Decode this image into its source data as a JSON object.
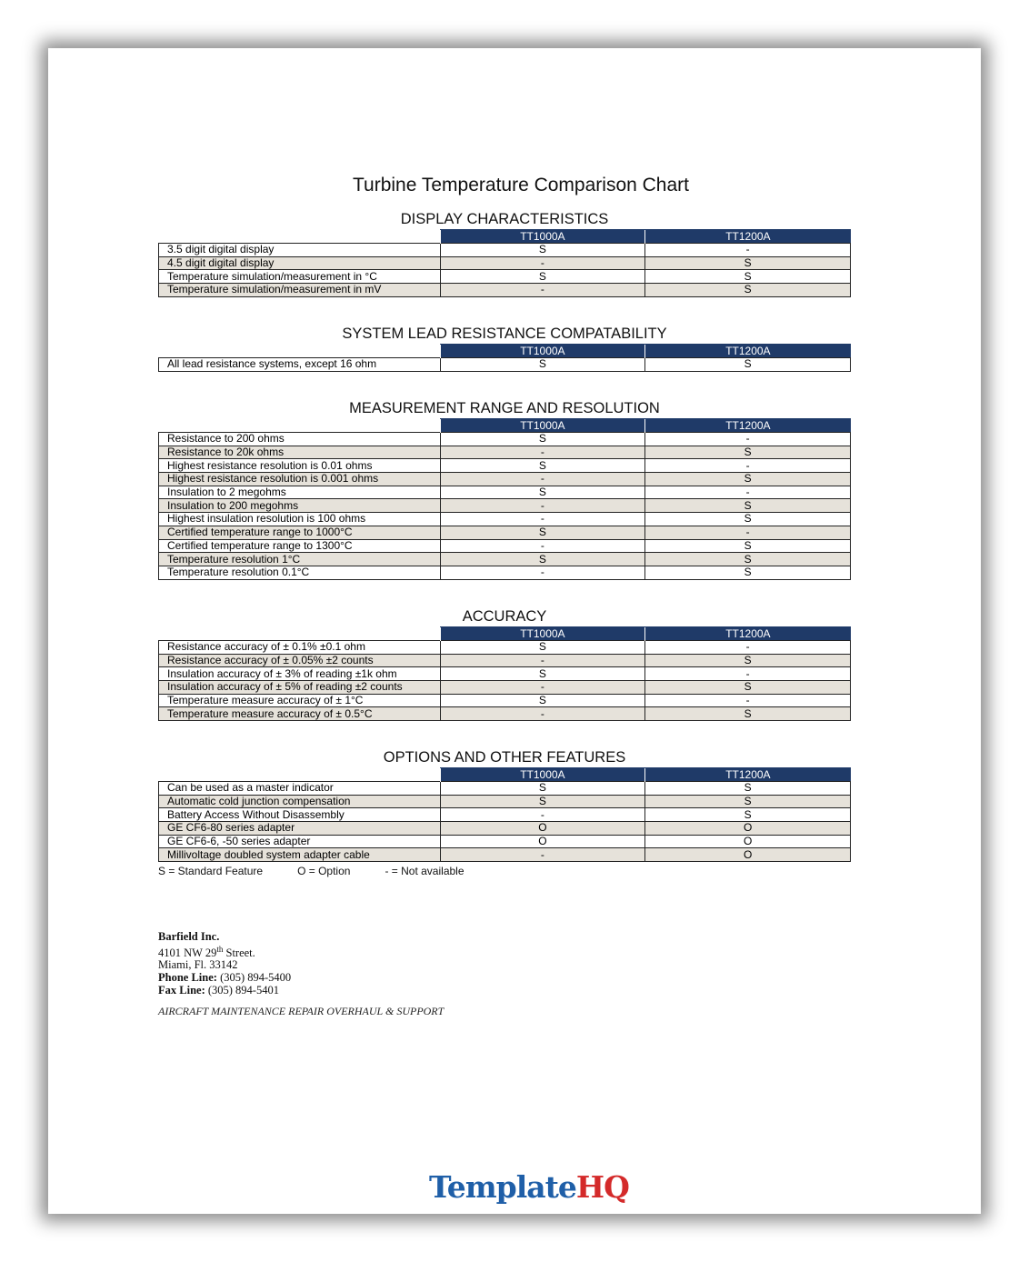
{
  "title": "Turbine Temperature Comparison Chart",
  "columns": [
    "TT1000A",
    "TT1200A"
  ],
  "colors": {
    "header_bg": "#1f3a68",
    "alt_row": "#e6e2da",
    "logo_blue": "#1f5fa8",
    "logo_red": "#d42a2a"
  },
  "sections": [
    {
      "heading": "DISPLAY CHARACTERISTICS",
      "rows": [
        [
          "3.5 digit digital display",
          "S",
          "-"
        ],
        [
          "4.5 digit digital display",
          "-",
          "S"
        ],
        [
          "Temperature simulation/measurement in °C",
          "S",
          "S"
        ],
        [
          "Temperature simulation/measurement in mV",
          "-",
          "S"
        ]
      ]
    },
    {
      "heading": "SYSTEM LEAD RESISTANCE COMPATABILITY",
      "rows": [
        [
          "All lead resistance systems, except 16 ohm",
          "S",
          "S"
        ]
      ]
    },
    {
      "heading": "MEASUREMENT RANGE AND RESOLUTION",
      "rows": [
        [
          "Resistance to 200 ohms",
          "S",
          "-"
        ],
        [
          "Resistance to 20k ohms",
          "-",
          "S"
        ],
        [
          "Highest resistance resolution is 0.01 ohms",
          "S",
          "-"
        ],
        [
          "Highest resistance resolution is 0.001 ohms",
          "-",
          "S"
        ],
        [
          "Insulation to 2 megohms",
          "S",
          "-"
        ],
        [
          "Insulation to 200 megohms",
          "-",
          "S"
        ],
        [
          "Highest insulation resolution is 100 ohms",
          "-",
          "S"
        ],
        [
          "Certified temperature range to 1000°C",
          "S",
          "-"
        ],
        [
          "Certified temperature range to 1300°C",
          "-",
          "S"
        ],
        [
          "Temperature resolution 1°C",
          "S",
          "S"
        ],
        [
          "Temperature resolution 0.1°C",
          "-",
          "S"
        ]
      ]
    },
    {
      "heading": "ACCURACY",
      "rows": [
        [
          "Resistance accuracy of ± 0.1% ±0.1 ohm",
          "S",
          "-"
        ],
        [
          "Resistance accuracy of ± 0.05% ±2 counts",
          "-",
          "S"
        ],
        [
          "Insulation accuracy of ± 3% of reading ±1k ohm",
          "S",
          "-"
        ],
        [
          "Insulation accuracy of ± 5% of reading ±2 counts",
          "-",
          "S"
        ],
        [
          "Temperature measure accuracy of ± 1°C",
          "S",
          "-"
        ],
        [
          "Temperature measure accuracy of ± 0.5°C",
          "-",
          "S"
        ]
      ]
    },
    {
      "heading": "OPTIONS AND OTHER FEATURES",
      "rows": [
        [
          "Can be used as a master indicator",
          "S",
          "S"
        ],
        [
          "Automatic cold junction compensation",
          "S",
          "S"
        ],
        [
          "Battery Access Without Disassembly",
          "-",
          "S"
        ],
        [
          "GE CF6-80 series adapter",
          "O",
          "O"
        ],
        [
          "GE CF6-6, -50 series adapter",
          "O",
          "O"
        ],
        [
          "Millivoltage doubled system adapter cable",
          "-",
          "O"
        ]
      ]
    }
  ],
  "legend": [
    "S = Standard Feature",
    "O = Option",
    "- = Not available"
  ],
  "footer": {
    "company": "Barfield Inc.",
    "street_pre": "4101 NW 29",
    "street_sup": "th",
    "street_post": " Street.",
    "city": "Miami, Fl. 33142",
    "phone_label": "Phone Line:",
    "phone": " (305) 894-5400",
    "fax_label": "Fax Line:",
    "fax": " (305) 894-5401",
    "tagline": "AIRCRAFT MAINTENANCE REPAIR OVERHAUL & SUPPORT"
  },
  "watermark": {
    "part1": "Template",
    "part2": "HQ"
  }
}
